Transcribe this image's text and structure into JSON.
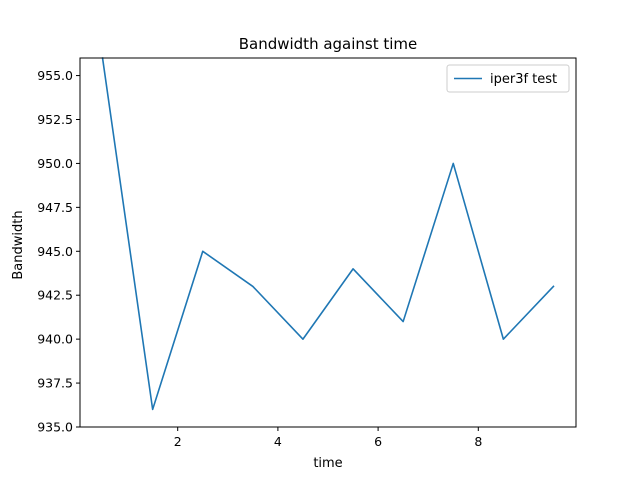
{
  "chart_data": {
    "type": "line",
    "title": "Bandwidth against time",
    "xlabel": "time",
    "ylabel": "Bandwidth",
    "xlim": [
      0.05,
      9.95
    ],
    "ylim": [
      935.0,
      956.0
    ],
    "xticks": [
      2,
      4,
      6,
      8
    ],
    "xtick_labels": [
      "2",
      "4",
      "6",
      "8"
    ],
    "yticks": [
      935.0,
      937.5,
      940.0,
      942.5,
      945.0,
      947.5,
      950.0,
      952.5,
      955.0
    ],
    "ytick_labels": [
      "935.0",
      "937.5",
      "940.0",
      "942.5",
      "945.0",
      "947.5",
      "950.0",
      "952.5",
      "955.0"
    ],
    "grid": false,
    "legend_position": "top-right",
    "series": [
      {
        "name": "iper3f test",
        "color": "#1f77b4",
        "x": [
          0.5,
          1.5,
          2.5,
          3.5,
          4.5,
          5.5,
          6.5,
          7.5,
          8.5,
          9.5
        ],
        "y": [
          956,
          936,
          945,
          943,
          940,
          944,
          941,
          950,
          940,
          943
        ]
      }
    ]
  }
}
